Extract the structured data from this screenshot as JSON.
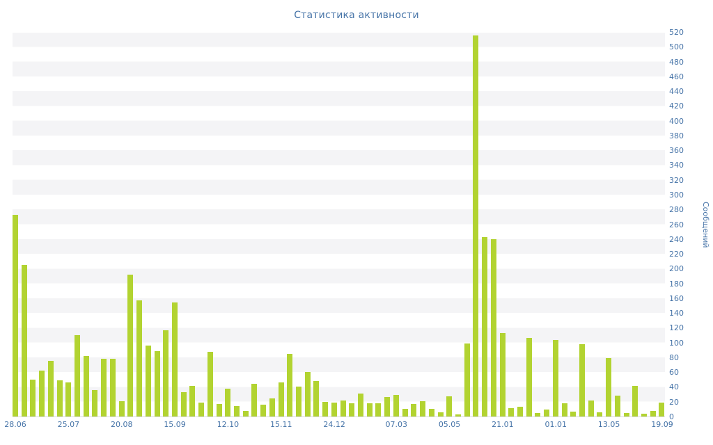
{
  "chart_data": {
    "type": "bar",
    "title": "Статистика активности",
    "ylabel": "Сообщений",
    "xlabel": "",
    "ylim": [
      0,
      520
    ],
    "ytick_step": 20,
    "grid": "striped-horizontal-bands",
    "legend": "none",
    "bar_color": "#b2d331",
    "title_color": "#4573a7",
    "axis_label_color": "#4573a7",
    "stripe_color": "#f4f4f6",
    "axis_line_color": "#d9d9df",
    "values": [
      273,
      205,
      50,
      62,
      75,
      49,
      46,
      110,
      82,
      36,
      78,
      78,
      21,
      192,
      157,
      96,
      88,
      117,
      154,
      33,
      41,
      19,
      87,
      17,
      38,
      14,
      8,
      44,
      16,
      24,
      46,
      85,
      40,
      60,
      48,
      20,
      19,
      22,
      18,
      31,
      18,
      18,
      26,
      29,
      10,
      17,
      21,
      10,
      6,
      27,
      3,
      99,
      515,
      243,
      240,
      113,
      11,
      13,
      106,
      5,
      9,
      103,
      18,
      7,
      98,
      22,
      6,
      79,
      28,
      5,
      41,
      4,
      8,
      19
    ],
    "x_tick_labels": [
      {
        "index": 0,
        "label": "28.06"
      },
      {
        "index": 6,
        "label": "25.07"
      },
      {
        "index": 12,
        "label": "20.08"
      },
      {
        "index": 18,
        "label": "15.09"
      },
      {
        "index": 24,
        "label": "12.10"
      },
      {
        "index": 30,
        "label": "15.11"
      },
      {
        "index": 36,
        "label": "24.12"
      },
      {
        "index": 43,
        "label": "07.03"
      },
      {
        "index": 49,
        "label": "05.05"
      },
      {
        "index": 55,
        "label": "21.01"
      },
      {
        "index": 61,
        "label": "01.01"
      },
      {
        "index": 67,
        "label": "13.05"
      },
      {
        "index": 73,
        "label": "19.09"
      }
    ]
  }
}
